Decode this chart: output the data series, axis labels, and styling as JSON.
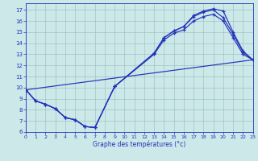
{
  "xlabel": "Graphe des températures (°c)",
  "bg_color": "#cce8e8",
  "line_color": "#2233bb",
  "ylim": [
    6,
    17.6
  ],
  "xlim": [
    0,
    23
  ],
  "yticks": [
    6,
    7,
    8,
    9,
    10,
    11,
    12,
    13,
    14,
    15,
    16,
    17
  ],
  "xticks": [
    0,
    1,
    2,
    3,
    4,
    5,
    6,
    7,
    8,
    9,
    10,
    11,
    12,
    13,
    14,
    15,
    16,
    17,
    18,
    19,
    20,
    21,
    22,
    23
  ],
  "curve1_x": [
    0,
    1,
    2,
    3,
    4,
    5,
    6,
    7,
    9,
    13,
    14,
    15,
    16,
    17,
    18,
    19,
    20,
    21,
    22,
    23
  ],
  "curve1_y": [
    9.8,
    8.8,
    8.5,
    8.1,
    7.3,
    7.1,
    6.5,
    6.4,
    10.1,
    13.1,
    14.5,
    15.1,
    15.5,
    16.5,
    16.9,
    17.1,
    16.9,
    15.0,
    13.3,
    12.5
  ],
  "curve2_x": [
    0,
    1,
    2,
    3,
    4,
    5,
    6,
    7,
    9,
    13,
    14,
    15,
    16,
    17,
    18,
    19,
    20,
    21,
    22,
    23
  ],
  "curve2_y": [
    9.8,
    8.8,
    8.5,
    8.1,
    7.3,
    7.1,
    6.5,
    6.4,
    10.1,
    13.1,
    14.5,
    15.1,
    15.5,
    16.4,
    16.8,
    17.0,
    16.3,
    14.8,
    13.2,
    12.5
  ],
  "curve3_x": [
    0,
    1,
    2,
    3,
    4,
    5,
    6,
    7,
    9,
    13,
    14,
    15,
    16,
    17,
    18,
    19,
    20,
    21,
    22,
    23
  ],
  "curve3_y": [
    9.8,
    8.8,
    8.5,
    8.1,
    7.3,
    7.1,
    6.5,
    6.4,
    10.1,
    13.0,
    14.3,
    14.9,
    15.2,
    16.0,
    16.4,
    16.6,
    16.0,
    14.5,
    13.0,
    12.5
  ],
  "curve4_x": [
    0,
    23
  ],
  "curve4_y": [
    9.8,
    12.5
  ]
}
